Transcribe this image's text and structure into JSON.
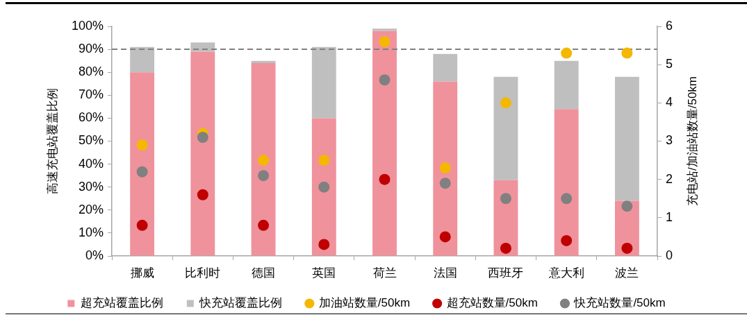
{
  "chart_data": {
    "type": "bar",
    "ylabel": "高速充电站覆盖比例",
    "y2label": "充电站/加油站数量/50km",
    "categories": [
      "挪威",
      "比利时",
      "德国",
      "英国",
      "荷兰",
      "法国",
      "西班牙",
      "意大利",
      "波兰"
    ],
    "stacked": true,
    "series": [
      {
        "name": "超充站覆盖比例",
        "color": "#ef929c",
        "values": [
          80,
          89,
          84,
          60,
          98,
          76,
          33,
          64,
          24
        ]
      },
      {
        "name": "快充站覆盖比例",
        "color": "#bfbfbf",
        "values": [
          11,
          4,
          1,
          31,
          1,
          12,
          45,
          21,
          54
        ]
      },
      {
        "name": "加油站数量/50km",
        "type": "scatter",
        "axis": "y2",
        "marker": "circle",
        "color": "#f4b800",
        "x": [
          "挪威",
          "比利时",
          "德国",
          "英国",
          "荷兰",
          "法国",
          "西班牙",
          "意大利",
          "波兰"
        ],
        "values": [
          2.9,
          3.2,
          2.5,
          2.5,
          5.6,
          2.3,
          4.0,
          5.3,
          5.3
        ]
      },
      {
        "name": "超充站数量/50km",
        "type": "scatter",
        "axis": "y2",
        "marker": "circle",
        "color": "#c00000",
        "x": [
          "挪威",
          "比利时",
          "德国",
          "英国",
          "荷兰",
          "法国",
          "西班牙",
          "意大利",
          "波兰"
        ],
        "values": [
          0.8,
          1.6,
          0.8,
          0.3,
          2.0,
          0.5,
          0.2,
          0.4,
          0.2
        ]
      },
      {
        "name": "快充站数量/50km",
        "type": "scatter",
        "axis": "y2",
        "marker": "circle",
        "color": "#808080",
        "x": [
          "挪威",
          "比利时",
          "德国",
          "英国",
          "荷兰",
          "法国",
          "西班牙",
          "意大利",
          "波兰"
        ],
        "values": [
          2.2,
          3.1,
          2.1,
          1.8,
          4.6,
          1.9,
          1.5,
          1.5,
          1.3
        ]
      }
    ],
    "ylim": [
      0,
      100
    ],
    "yticks": [
      {
        "value": 0,
        "label": "0%"
      },
      {
        "value": 10,
        "label": "10%"
      },
      {
        "value": 20,
        "label": "20%"
      },
      {
        "value": 30,
        "label": "30%"
      },
      {
        "value": 40,
        "label": "40%"
      },
      {
        "value": 50,
        "label": "50%"
      },
      {
        "value": 60,
        "label": "60%"
      },
      {
        "value": 70,
        "label": "70%"
      },
      {
        "value": 80,
        "label": "80%"
      },
      {
        "value": 90,
        "label": "90%"
      },
      {
        "value": 100,
        "label": "100%"
      }
    ],
    "y2lim": [
      0,
      6
    ],
    "y2ticks": [
      0,
      1,
      2,
      3,
      4,
      5,
      6
    ],
    "ref_lines": [
      {
        "axis": "y",
        "value": 90,
        "color": "#808080",
        "line_style": "dashed"
      }
    ],
    "legend": "bottom"
  }
}
